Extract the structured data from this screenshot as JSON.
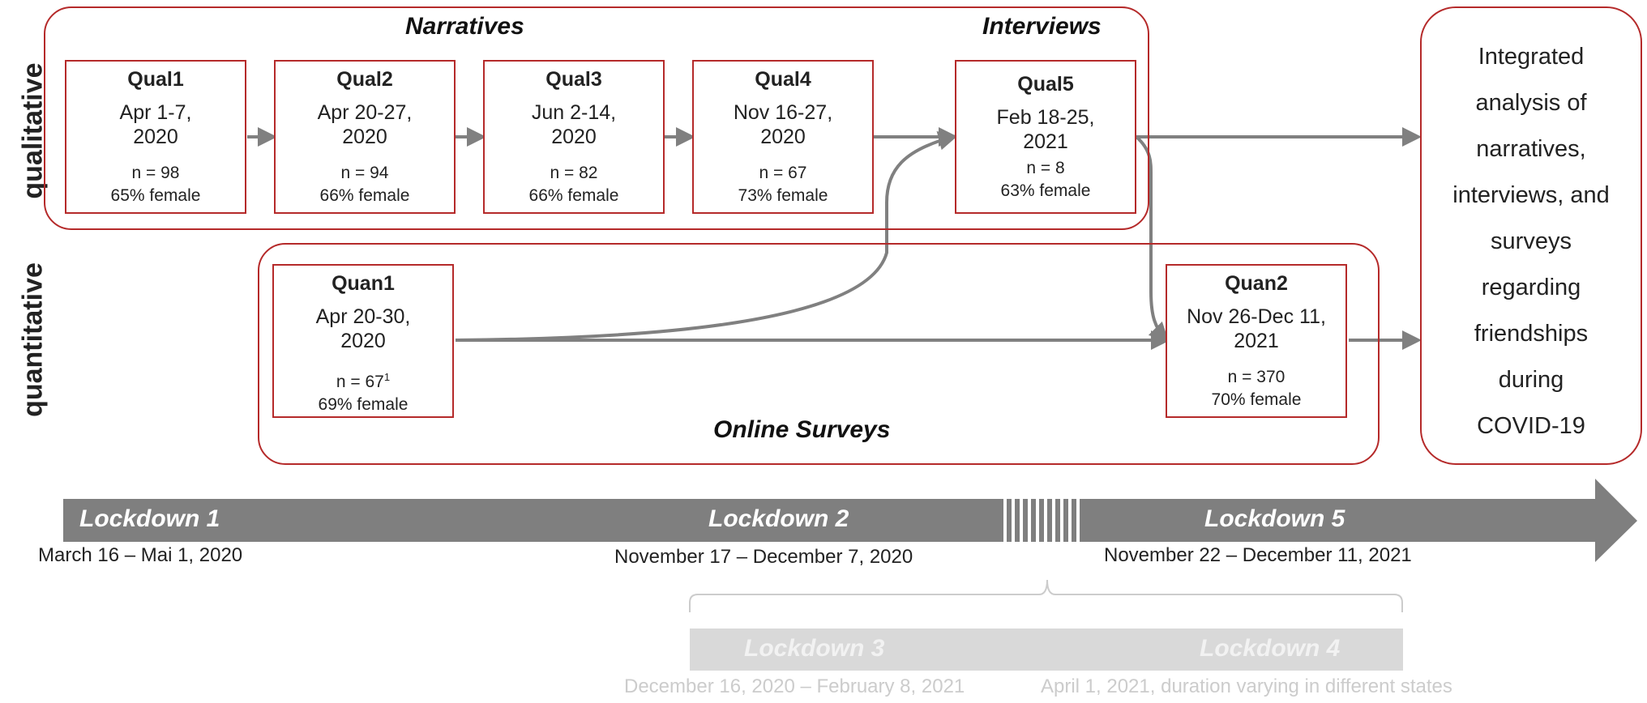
{
  "rows": {
    "qualitative": "qualitative",
    "quantitative": "quantitative"
  },
  "groups": {
    "narratives": "Narratives",
    "interviews": "Interviews",
    "online_surveys": "Online Surveys"
  },
  "studies": [
    {
      "id": "Qual1",
      "title": "Qual1",
      "date_line1": "Apr 1-7,",
      "date_line2": "2020",
      "n": "n = 98",
      "female": "65% female"
    },
    {
      "id": "Qual2",
      "title": "Qual2",
      "date_line1": "Apr 20-27,",
      "date_line2": "2020",
      "n": "n = 94",
      "female": "66% female"
    },
    {
      "id": "Qual3",
      "title": "Qual3",
      "date_line1": "Jun 2-14,",
      "date_line2": "2020",
      "n": "n = 82",
      "female": "66% female"
    },
    {
      "id": "Qual4",
      "title": "Qual4",
      "date_line1": "Nov 16-27,",
      "date_line2": "2020",
      "n": "n = 67",
      "female": "73% female"
    },
    {
      "id": "Qual5",
      "title": "Qual5",
      "date_line1": "Feb 18-25,",
      "date_line2": "2021",
      "n": "n = 8",
      "female": "63% female"
    },
    {
      "id": "Quan1",
      "title": "Quan1",
      "date_line1": "Apr 20-30,",
      "date_line2": "2020",
      "n": "n = 67",
      "superscript": "1",
      "female": "69% female"
    },
    {
      "id": "Quan2",
      "title": "Quan2",
      "date_line1": "Nov 26-Dec 11,",
      "date_line2": "2021",
      "n": "n = 370",
      "female": "70% female"
    }
  ],
  "integrated": [
    "Integrated",
    "analysis of",
    "narratives,",
    "interviews, and",
    "surveys",
    "regarding",
    "friendships",
    "during",
    "COVID-19"
  ],
  "timeline": {
    "lockdowns": [
      {
        "label": "Lockdown 1",
        "dates": "March 16 – Mai 1, 2020"
      },
      {
        "label": "Lockdown 2",
        "dates": "November 17 – December 7, 2020"
      },
      {
        "label": "Lockdown 5",
        "dates": "November 22 – December 11, 2021"
      },
      {
        "label": "Lockdown 3",
        "dates": "December 16, 2020 – February 8, 2021"
      },
      {
        "label": "Lockdown 4",
        "dates": "April 1, 2021, duration varying in different states"
      }
    ]
  },
  "colors": {
    "border": "#b52a2a",
    "arrow": "#808080",
    "bar": "#7f7f7f",
    "faint_bar": "#d9d9d9"
  }
}
